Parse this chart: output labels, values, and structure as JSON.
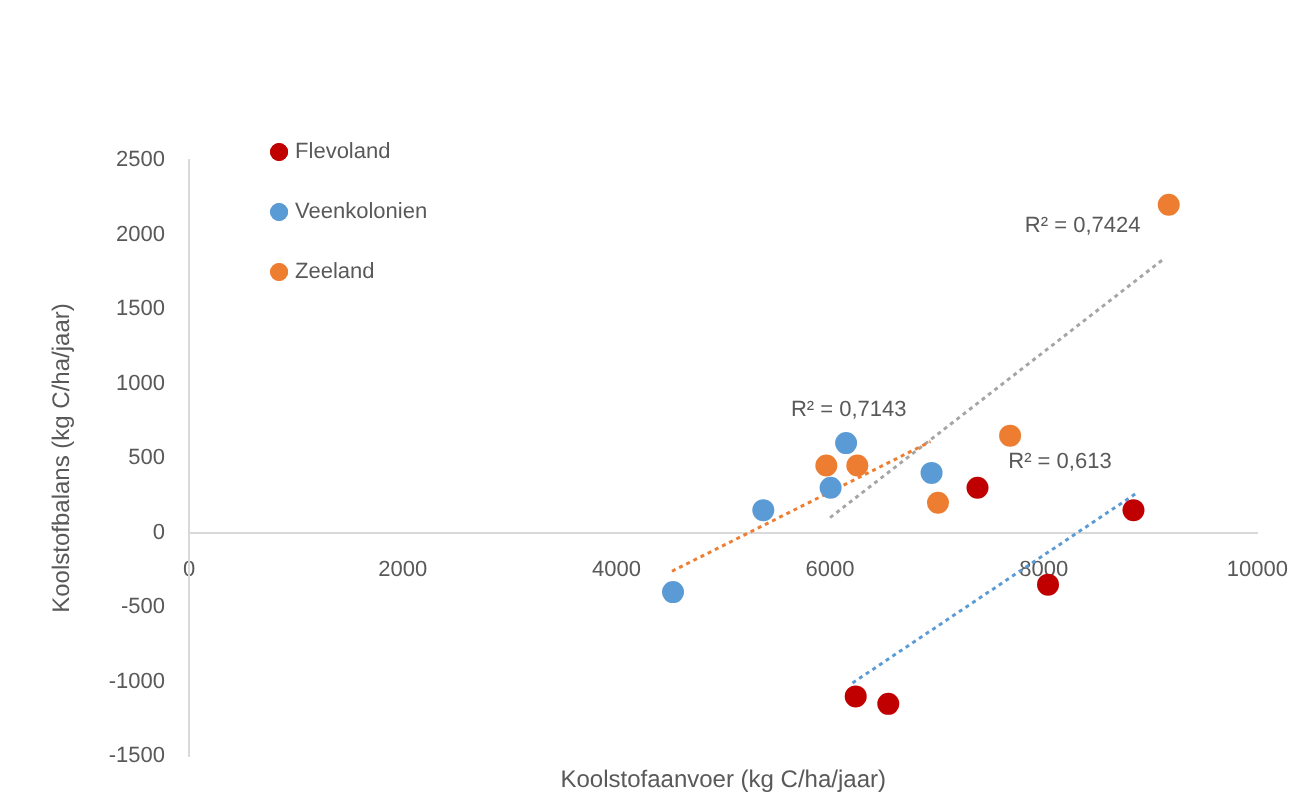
{
  "chart_data": {
    "type": "scatter",
    "xlabel": "Koolstofaanvoer (kg C/ha/jaar)",
    "ylabel": "Koolstofbalans (kg C/ha/jaar)",
    "xlim": [
      0,
      10000
    ],
    "xticks": [
      0,
      2000,
      4000,
      6000,
      8000,
      10000
    ],
    "ylim": [
      -1500,
      2500
    ],
    "yticks": [
      -1500,
      -1000,
      -500,
      0,
      500,
      1000,
      1500,
      2000,
      2500
    ],
    "grid": false,
    "legend": "top left",
    "marker": "circle",
    "series": [
      {
        "name": "Flevoland",
        "color": "#c00000",
        "x": [
          7380,
          8840,
          8040,
          6240,
          6545
        ],
        "values": [
          300,
          150,
          -350,
          -1100,
          -1150
        ]
      },
      {
        "name": "Veenkolonien",
        "color": "#5b9bd5",
        "x": [
          4530,
          5375,
          6005,
          6150,
          6950
        ],
        "values": [
          -400,
          150,
          300,
          600,
          400
        ]
      },
      {
        "name": "Zeeland",
        "color": "#ed7d31",
        "x": [
          5965,
          6255,
          7010,
          7685,
          9170
        ],
        "values": [
          450,
          450,
          200,
          650,
          2200
        ]
      },
      {
        "type": "line",
        "color": "#ed7d31",
        "line_style": "dotted",
        "marker": "none",
        "x": [
          4520,
          6940
        ],
        "values": [
          -260,
          610
        ]
      },
      {
        "type": "line",
        "color": "#a5a5a5",
        "line_style": "dotted",
        "marker": "none",
        "x": [
          6000,
          9130
        ],
        "values": [
          100,
          1840
        ]
      },
      {
        "type": "line",
        "color": "#5b9bd5",
        "line_style": "dotted",
        "marker": "none",
        "x": [
          6210,
          8860
        ],
        "values": [
          -1010,
          260
        ]
      }
    ],
    "annotations": [
      "R² = 0,7143",
      "R² = 0,7424",
      "R² = 0,613"
    ]
  }
}
